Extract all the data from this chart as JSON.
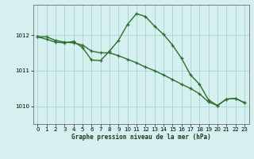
{
  "background_color": "#d6f0f0",
  "grid_color": "#a8d8d8",
  "line_color": "#2d6e2d",
  "xlabel": "Graphe pression niveau de la mer (hPa)",
  "xlim": [
    -0.5,
    23.5
  ],
  "ylim": [
    1009.5,
    1012.85
  ],
  "yticks": [
    1010,
    1011,
    1012
  ],
  "xticks": [
    0,
    1,
    2,
    3,
    4,
    5,
    6,
    7,
    8,
    9,
    10,
    11,
    12,
    13,
    14,
    15,
    16,
    17,
    18,
    19,
    20,
    21,
    22,
    23
  ],
  "series1_x": [
    0,
    1,
    2,
    3,
    4,
    5,
    6,
    7,
    8,
    9,
    10,
    11,
    12,
    13,
    14,
    15,
    16,
    17,
    18,
    19,
    20,
    21,
    22,
    23
  ],
  "series1_y": [
    1011.95,
    1011.95,
    1011.85,
    1011.8,
    1011.78,
    1011.72,
    1011.55,
    1011.5,
    1011.5,
    1011.42,
    1011.32,
    1011.22,
    1011.1,
    1011.0,
    1010.88,
    1010.75,
    1010.62,
    1010.5,
    1010.35,
    1010.12,
    1010.02,
    1010.2,
    1010.22,
    1010.1
  ],
  "series2_x": [
    0,
    1,
    2,
    3,
    4,
    5,
    6,
    7,
    8,
    9,
    10,
    11,
    12,
    13,
    14,
    15,
    16,
    17,
    18,
    19,
    20,
    21,
    22,
    23
  ],
  "series2_y": [
    1011.95,
    1011.88,
    1011.8,
    1011.78,
    1011.82,
    1011.65,
    1011.3,
    1011.28,
    1011.55,
    1011.85,
    1012.3,
    1012.6,
    1012.52,
    1012.25,
    1012.02,
    1011.72,
    1011.35,
    1010.88,
    1010.62,
    1010.18,
    1010.02,
    1010.2,
    1010.22,
    1010.1
  ]
}
